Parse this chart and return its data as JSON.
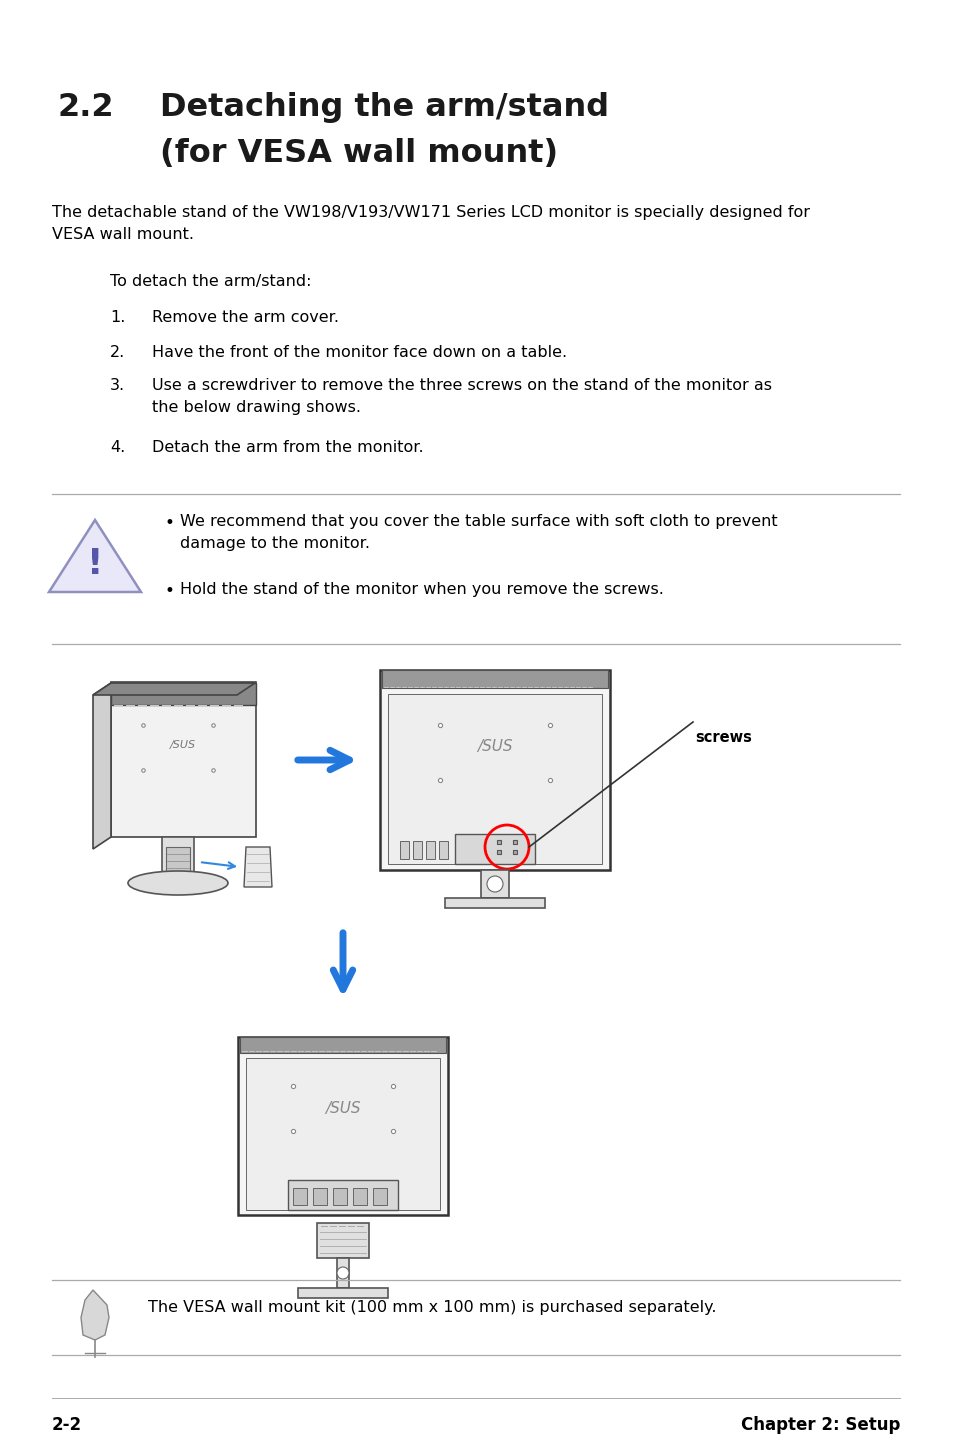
{
  "title_number": "2.2",
  "title_line1": "Detaching the arm/stand",
  "title_line2": "(for VESA wall mount)",
  "body_text": "The detachable stand of the VW198/V193/VW171 Series LCD monitor is specially designed for\nVESA wall mount.",
  "indent_text": "To detach the arm/stand:",
  "steps": [
    "Remove the arm cover.",
    "Have the front of the monitor face down on a table.",
    "Use a screwdriver to remove the three screws on the stand of the monitor as\nthe below drawing shows.",
    "Detach the arm from the monitor."
  ],
  "warning_bullets": [
    "We recommend that you cover the table surface with soft cloth to prevent\ndamage to the monitor.",
    "Hold the stand of the monitor when you remove the screws."
  ],
  "note_text": "The VESA wall mount kit (100 mm x 100 mm) is purchased separately.",
  "footer_left": "2-2",
  "footer_right": "Chapter 2: Setup",
  "bg_color": "#ffffff",
  "text_color": "#000000",
  "title_color": "#1a1a1a"
}
